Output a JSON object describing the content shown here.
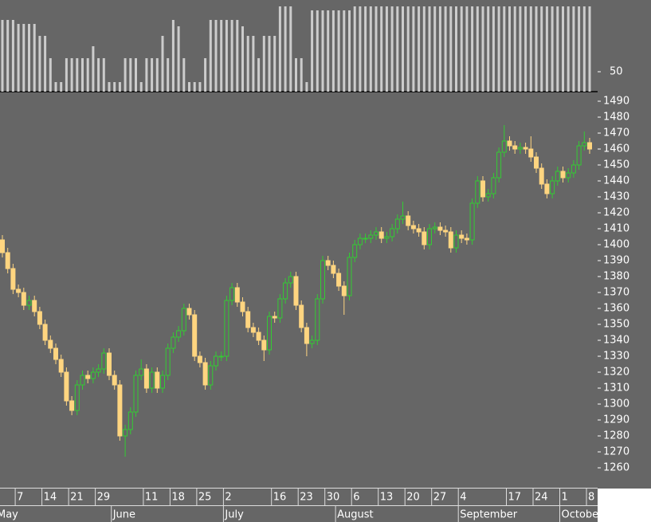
{
  "chart_data": [
    {
      "type": "bar",
      "color": "#cccccc",
      "ylim": [
        0,
        230
      ],
      "yticks": [
        50
      ],
      "values": [
        180,
        180,
        180,
        170,
        170,
        170,
        170,
        140,
        140,
        84,
        24,
        24,
        84,
        84,
        84,
        84,
        84,
        114,
        84,
        84,
        24,
        24,
        24,
        84,
        84,
        84,
        24,
        84,
        84,
        84,
        140,
        84,
        180,
        164,
        84,
        24,
        24,
        24,
        84,
        180,
        180,
        180,
        180,
        180,
        180,
        164,
        140,
        140,
        84,
        140,
        140,
        140,
        214,
        214,
        214,
        84,
        84,
        24,
        204,
        204,
        204,
        204,
        204,
        204,
        204,
        204,
        214,
        214,
        214,
        214,
        214,
        214,
        214,
        214,
        214,
        214,
        214,
        214,
        214,
        214,
        214,
        214,
        214,
        214,
        214,
        214,
        214,
        214,
        214,
        214,
        214,
        214,
        214,
        214,
        214,
        214,
        214,
        214,
        214,
        214,
        214,
        214,
        214,
        214,
        214,
        214,
        214,
        214,
        214,
        214,
        214
      ]
    },
    {
      "type": "candlestick",
      "up_color": "#33cc33",
      "down_color": "#ffd580",
      "ylim": [
        1247.5,
        1496
      ],
      "yticks": [
        1260,
        1270,
        1280,
        1290,
        1300,
        1310,
        1320,
        1330,
        1340,
        1350,
        1360,
        1370,
        1380,
        1390,
        1400,
        1410,
        1420,
        1430,
        1440,
        1450,
        1460,
        1470,
        1480,
        1490
      ],
      "categories": [
        null,
        null,
        null,
        "7",
        null,
        null,
        null,
        null,
        "14",
        null,
        null,
        null,
        null,
        "21",
        null,
        null,
        null,
        null,
        "29",
        null,
        null,
        null,
        null,
        null,
        null,
        null,
        null,
        "11",
        null,
        null,
        null,
        null,
        "18",
        null,
        null,
        null,
        null,
        "25",
        null,
        null,
        null,
        null,
        "2",
        null,
        null,
        null,
        null,
        null,
        null,
        null,
        null,
        "16",
        null,
        null,
        null,
        null,
        "23",
        null,
        null,
        null,
        null,
        "30",
        null,
        null,
        null,
        null,
        "6",
        null,
        null,
        null,
        null,
        "13",
        null,
        null,
        null,
        null,
        "20",
        null,
        null,
        null,
        null,
        "27",
        null,
        null,
        null,
        null,
        "4",
        null,
        null,
        null,
        null,
        null,
        null,
        null,
        null,
        "17",
        null,
        null,
        null,
        null,
        "24",
        null,
        null,
        null,
        null,
        "1",
        null,
        null,
        null,
        null,
        "8"
      ],
      "months": [
        "May",
        null,
        null,
        null,
        null,
        null,
        null,
        null,
        null,
        null,
        null,
        null,
        null,
        null,
        null,
        null,
        null,
        null,
        null,
        null,
        null,
        "June",
        null,
        null,
        null,
        null,
        null,
        null,
        null,
        null,
        null,
        null,
        null,
        null,
        null,
        null,
        null,
        null,
        null,
        null,
        null,
        null,
        "July",
        null,
        null,
        null,
        null,
        null,
        null,
        null,
        null,
        null,
        null,
        null,
        null,
        null,
        null,
        null,
        null,
        null,
        null,
        null,
        null,
        "August",
        null,
        null,
        null,
        null,
        null,
        null,
        null,
        null,
        null,
        null,
        null,
        null,
        null,
        null,
        null,
        null,
        null,
        null,
        null,
        null,
        null,
        null,
        "September",
        null,
        null,
        null,
        null,
        null,
        null,
        null,
        null,
        null,
        null,
        null,
        null,
        null,
        null,
        null,
        null,
        null,
        null,
        "October",
        null,
        null,
        null,
        null,
        null
      ],
      "open": [
        1403,
        1395,
        1385,
        1372,
        1370,
        1362,
        1365,
        1358,
        1350,
        1340,
        1335,
        1328,
        1320,
        1302,
        1296,
        1312,
        1318,
        1316,
        1320,
        1322,
        1332,
        1318,
        1312,
        1280,
        1284,
        1295,
        1318,
        1322,
        1310,
        1320,
        1310,
        1318,
        1335,
        1342,
        1346,
        1360,
        1356,
        1330,
        1326,
        1312,
        1324,
        1330,
        1330,
        1365,
        1373,
        1364,
        1358,
        1348,
        1345,
        1340,
        1334,
        1355,
        1354,
        1366,
        1376,
        1380,
        1362,
        1348,
        1338,
        1340,
        1366,
        1390,
        1387,
        1382,
        1374,
        1368,
        1392,
        1400,
        1404,
        1404,
        1406,
        1408,
        1404,
        1405,
        1410,
        1416,
        1418,
        1412,
        1410,
        1408,
        1400,
        1410,
        1411,
        1409,
        1408,
        1398,
        1406,
        1404,
        1403,
        1426,
        1440,
        1430,
        1432,
        1442,
        1458,
        1465,
        1462,
        1460,
        1461,
        1460,
        1455,
        1448,
        1438,
        1432,
        1440,
        1446,
        1442,
        1445,
        1450,
        1462,
        1464
      ],
      "high": [
        1406,
        1398,
        1388,
        1375,
        1373,
        1368,
        1368,
        1361,
        1353,
        1343,
        1338,
        1331,
        1323,
        1305,
        1315,
        1321,
        1321,
        1323,
        1325,
        1335,
        1335,
        1321,
        1315,
        1287,
        1298,
        1321,
        1328,
        1325,
        1323,
        1323,
        1321,
        1338,
        1345,
        1349,
        1363,
        1363,
        1359,
        1333,
        1329,
        1327,
        1333,
        1333,
        1368,
        1376,
        1376,
        1367,
        1361,
        1351,
        1348,
        1343,
        1358,
        1358,
        1369,
        1379,
        1383,
        1383,
        1365,
        1351,
        1343,
        1369,
        1393,
        1393,
        1390,
        1385,
        1377,
        1395,
        1403,
        1407,
        1407,
        1409,
        1411,
        1411,
        1408,
        1413,
        1419,
        1427,
        1421,
        1415,
        1413,
        1411,
        1413,
        1414,
        1414,
        1412,
        1411,
        1409,
        1409,
        1407,
        1429,
        1443,
        1443,
        1435,
        1445,
        1461,
        1475,
        1468,
        1465,
        1464,
        1464,
        1468,
        1458,
        1451,
        1441,
        1443,
        1449,
        1449,
        1448,
        1453,
        1465,
        1471,
        1467
      ],
      "low": [
        1392,
        1382,
        1369,
        1367,
        1359,
        1359,
        1355,
        1347,
        1337,
        1332,
        1325,
        1317,
        1299,
        1293,
        1293,
        1309,
        1313,
        1313,
        1317,
        1319,
        1315,
        1309,
        1277,
        1267,
        1281,
        1292,
        1315,
        1307,
        1307,
        1307,
        1307,
        1315,
        1332,
        1339,
        1343,
        1353,
        1327,
        1323,
        1309,
        1309,
        1321,
        1327,
        1327,
        1362,
        1361,
        1355,
        1345,
        1342,
        1337,
        1327,
        1331,
        1351,
        1351,
        1363,
        1373,
        1359,
        1345,
        1330,
        1335,
        1337,
        1363,
        1384,
        1379,
        1371,
        1356,
        1365,
        1389,
        1397,
        1401,
        1401,
        1403,
        1401,
        1401,
        1402,
        1407,
        1413,
        1409,
        1407,
        1405,
        1397,
        1397,
        1407,
        1406,
        1405,
        1395,
        1395,
        1401,
        1400,
        1400,
        1423,
        1427,
        1427,
        1429,
        1439,
        1455,
        1459,
        1457,
        1457,
        1457,
        1452,
        1445,
        1435,
        1429,
        1429,
        1437,
        1439,
        1439,
        1442,
        1447,
        1459,
        1457
      ],
      "close": [
        1395,
        1385,
        1372,
        1370,
        1362,
        1365,
        1358,
        1350,
        1340,
        1335,
        1328,
        1320,
        1302,
        1296,
        1312,
        1318,
        1316,
        1320,
        1322,
        1332,
        1318,
        1312,
        1280,
        1284,
        1295,
        1318,
        1322,
        1310,
        1320,
        1310,
        1318,
        1335,
        1342,
        1346,
        1360,
        1356,
        1330,
        1326,
        1312,
        1324,
        1330,
        1330,
        1365,
        1373,
        1364,
        1358,
        1348,
        1345,
        1340,
        1334,
        1355,
        1354,
        1366,
        1376,
        1380,
        1362,
        1348,
        1338,
        1340,
        1366,
        1390,
        1387,
        1382,
        1374,
        1368,
        1392,
        1400,
        1404,
        1404,
        1406,
        1408,
        1404,
        1405,
        1410,
        1416,
        1418,
        1412,
        1410,
        1408,
        1400,
        1410,
        1411,
        1409,
        1408,
        1398,
        1406,
        1404,
        1403,
        1426,
        1440,
        1430,
        1432,
        1442,
        1458,
        1465,
        1462,
        1460,
        1461,
        1460,
        1455,
        1448,
        1438,
        1432,
        1440,
        1446,
        1442,
        1445,
        1450,
        1462,
        1464,
        1460
      ]
    }
  ]
}
